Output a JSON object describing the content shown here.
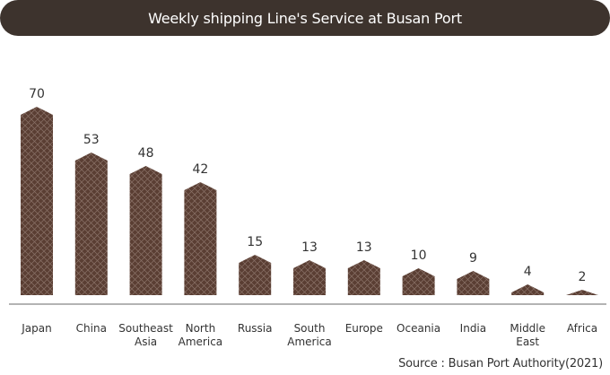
{
  "chart_data": {
    "type": "bar",
    "title": "Weekly shipping Line's Service at Busan Port",
    "categories": [
      [
        "Japan"
      ],
      [
        "China"
      ],
      [
        "Southeast",
        "Asia"
      ],
      [
        "North",
        "America"
      ],
      [
        "Russia"
      ],
      [
        "South",
        "America"
      ],
      [
        "Europe"
      ],
      [
        "Oceania"
      ],
      [
        "India"
      ],
      [
        "Middle",
        "East"
      ],
      [
        "Africa"
      ]
    ],
    "values": [
      70,
      53,
      48,
      42,
      15,
      13,
      13,
      10,
      9,
      4,
      2
    ],
    "xlabel": "",
    "ylabel": "",
    "grid": false,
    "legend": "none",
    "colors": {
      "bar": "#5a3e33",
      "hatch": "#8a7268",
      "title_bg": "#3d332d",
      "axis": "#9a9a9a"
    }
  },
  "source": "Source : Busan Port Authority(2021)"
}
